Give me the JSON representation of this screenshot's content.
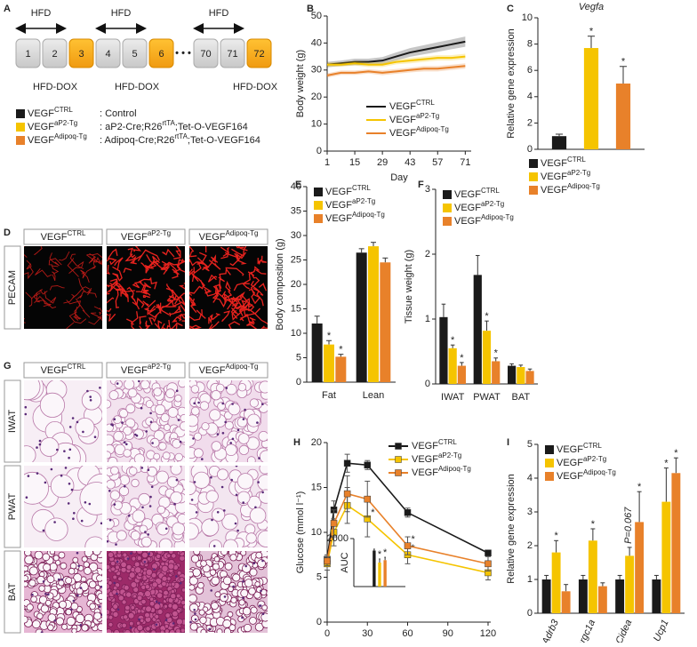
{
  "panel_a": {
    "label": "A",
    "hfd": [
      "HFD",
      "HFD",
      "HFD"
    ],
    "weeks": [
      "1",
      "2",
      "3",
      "4",
      "5",
      "6",
      "70",
      "71",
      "72"
    ],
    "ellipsis": "• • •",
    "dox": [
      "HFD-DOX",
      "HFD-DOX",
      "HFD-DOX"
    ],
    "legend": [
      {
        "name": "VEGF",
        "name_sup": "CTRL",
        "color": "#1a1a1a",
        "desc": ": Control"
      },
      {
        "name": "VEGF",
        "name_sup": "aP2-Tg",
        "color": "#f5c400",
        "desc": ": aP2-Cre;R26",
        "desc_sup": "rtTA",
        "desc_end": ";Tet-O-VEGF164"
      },
      {
        "name": "VEGF",
        "name_sup": "Adipoq-Tg",
        "color": "#e8812a",
        "desc": ": Adipoq-Cre;R26",
        "desc_sup": "rtTA",
        "desc_end": ";Tet-O-VEGF164"
      }
    ]
  },
  "panel_d": {
    "label": "D",
    "columns": [
      {
        "name": "VEGF",
        "name_sup": "CTRL"
      },
      {
        "name": "VEGF",
        "name_sup": "aP2-Tg"
      },
      {
        "name": "VEGF",
        "name_sup": "Adipoq-Tg"
      }
    ],
    "rows": [
      "PECAM"
    ]
  },
  "panel_g": {
    "label": "G",
    "columns": [
      {
        "name": "VEGF",
        "name_sup": "CTRL"
      },
      {
        "name": "VEGF",
        "name_sup": "aP2-Tg"
      },
      {
        "name": "VEGF",
        "name_sup": "Adipoq-Tg"
      }
    ],
    "rows": [
      "IWAT",
      "PWAT",
      "BAT"
    ]
  },
  "chart_data": [
    {
      "panel": "B",
      "type": "line",
      "ylabel": "Body weight (g)",
      "xlabel": "Day",
      "x": [
        1,
        8,
        15,
        22,
        29,
        36,
        43,
        50,
        57,
        64,
        71
      ],
      "xlim": [
        1,
        74
      ],
      "xticks": [
        1,
        15,
        29,
        43,
        57,
        71
      ],
      "ylim": [
        0,
        50
      ],
      "yticks": [
        0,
        10,
        20,
        30,
        40,
        50
      ],
      "error_style": "band",
      "legend": "lower right",
      "series": [
        {
          "name": "VEGF",
          "name_sup": "CTRL",
          "color": "#1a1a1a",
          "values": [
            32,
            32.5,
            33,
            33,
            33.5,
            35,
            36.5,
            37.5,
            38.5,
            39.5,
            40.5
          ],
          "errors": [
            1,
            1,
            1.2,
            1.2,
            1.3,
            1.5,
            1.6,
            1.7,
            1.8,
            1.8,
            1.9
          ]
        },
        {
          "name": "VEGF",
          "name_sup": "aP2-Tg",
          "color": "#f5c400",
          "values": [
            32,
            32,
            32.5,
            32,
            32,
            33,
            33.5,
            34,
            34.5,
            34.5,
            35
          ],
          "errors": [
            0.8,
            0.8,
            0.8,
            0.9,
            0.9,
            0.9,
            1,
            1,
            1,
            1,
            1
          ]
        },
        {
          "name": "VEGF",
          "name_sup": "Adipoq-Tg",
          "color": "#e8812a",
          "values": [
            28,
            29,
            29,
            29.5,
            29,
            29.5,
            30,
            30.5,
            30.5,
            31,
            31.5
          ],
          "errors": [
            0.8,
            0.8,
            0.8,
            0.8,
            0.9,
            0.9,
            0.9,
            1,
            1,
            1,
            1
          ]
        }
      ]
    },
    {
      "panel": "C",
      "type": "bar",
      "title": "Vegfa",
      "ylabel": "Relative gene expression",
      "categories": [
        null
      ],
      "ylim": [
        0,
        10
      ],
      "yticks": [
        0,
        2,
        4,
        6,
        8,
        10
      ],
      "legend": "below",
      "series": [
        {
          "name": "VEGF",
          "name_sup": "CTRL",
          "color": "#1a1a1a",
          "values": [
            1
          ],
          "errors": [
            0.15
          ],
          "significance": [
            null
          ]
        },
        {
          "name": "VEGF",
          "name_sup": "aP2-Tg",
          "color": "#f5c400",
          "values": [
            7.7
          ],
          "errors": [
            0.9
          ],
          "significance": [
            "*"
          ]
        },
        {
          "name": "VEGF",
          "name_sup": "Adipoq-Tg",
          "color": "#e8812a",
          "values": [
            5
          ],
          "errors": [
            1.3
          ],
          "significance": [
            "*"
          ]
        }
      ]
    },
    {
      "panel": "E",
      "type": "bar",
      "ylabel": "Body composition (g)",
      "categories": [
        "Fat",
        "Lean"
      ],
      "ylim": [
        0,
        40
      ],
      "yticks": [
        0,
        5,
        10,
        15,
        20,
        25,
        30,
        35,
        40
      ],
      "legend": "upper left",
      "series": [
        {
          "name": "VEGF",
          "name_sup": "CTRL",
          "color": "#1a1a1a",
          "values": [
            12,
            26.5
          ],
          "errors": [
            1.5,
            0.8
          ],
          "significance": [
            null,
            null
          ]
        },
        {
          "name": "VEGF",
          "name_sup": "aP2-Tg",
          "color": "#f5c400",
          "values": [
            7.7,
            27.8
          ],
          "errors": [
            0.8,
            0.8
          ],
          "significance": [
            "*",
            null
          ]
        },
        {
          "name": "VEGF",
          "name_sup": "Adipoq-Tg",
          "color": "#e8812a",
          "values": [
            5.2,
            24.5
          ],
          "errors": [
            0.5,
            0.9
          ],
          "significance": [
            "*",
            null
          ]
        }
      ]
    },
    {
      "panel": "F",
      "type": "bar",
      "ylabel": "Tissue weight (g)",
      "categories": [
        "IWAT",
        "PWAT",
        "BAT"
      ],
      "ylim": [
        0,
        3
      ],
      "yticks": [
        0,
        1,
        2,
        3
      ],
      "legend": "upper left",
      "series": [
        {
          "name": "VEGF",
          "name_sup": "CTRL",
          "color": "#1a1a1a",
          "values": [
            1.03,
            1.68,
            0.28
          ],
          "errors": [
            0.2,
            0.3,
            0.03
          ],
          "significance": [
            null,
            null,
            null
          ]
        },
        {
          "name": "VEGF",
          "name_sup": "aP2-Tg",
          "color": "#f5c400",
          "values": [
            0.55,
            0.82,
            0.26
          ],
          "errors": [
            0.05,
            0.15,
            0.03
          ],
          "significance": [
            "*",
            "*",
            null
          ]
        },
        {
          "name": "VEGF",
          "name_sup": "Adipoq-Tg",
          "color": "#e8812a",
          "values": [
            0.28,
            0.35,
            0.2
          ],
          "errors": [
            0.05,
            0.05,
            0.03
          ],
          "significance": [
            "*",
            "*",
            null
          ]
        }
      ]
    },
    {
      "panel": "H",
      "type": "line",
      "ylabel": "Glucose (mmol l⁻¹)",
      "xlabel": "Time (min)",
      "x": [
        0,
        5,
        15,
        30,
        60,
        120
      ],
      "xlim": [
        0,
        122
      ],
      "xticks": [
        0,
        30,
        60,
        90,
        120
      ],
      "ylim": [
        0,
        20
      ],
      "yticks": [
        0,
        5,
        10,
        15,
        20
      ],
      "error_style": "bars",
      "markers": "square",
      "legend": "upper right",
      "series": [
        {
          "name": "VEGF",
          "name_sup": "CTRL",
          "color": "#1a1a1a",
          "values": [
            7,
            12.5,
            17.7,
            17.5,
            12.2,
            7.7
          ],
          "errors": [
            0.5,
            1,
            1,
            0.5,
            0.5,
            0.3
          ],
          "significance": [
            null,
            null,
            null,
            null,
            null,
            null
          ]
        },
        {
          "name": "VEGF",
          "name_sup": "aP2-Tg",
          "color": "#f5c400",
          "values": [
            6.5,
            10,
            13,
            11.5,
            7.5,
            5.5
          ],
          "errors": [
            0.7,
            1.5,
            2,
            2,
            1,
            0.8
          ],
          "significance": [
            null,
            null,
            null,
            "*",
            "*",
            null
          ]
        },
        {
          "name": "VEGF",
          "name_sup": "Adipoq-Tg",
          "color": "#e8812a",
          "values": [
            6.8,
            11,
            14.3,
            13.7,
            8.5,
            6.5
          ],
          "errors": [
            0.5,
            1.5,
            2,
            2,
            1,
            0.8
          ],
          "significance": [
            null,
            null,
            null,
            null,
            "*",
            null
          ]
        }
      ]
    },
    {
      "type": "bar",
      "ylabel": "AUC",
      "categories": [
        null,
        null,
        null
      ],
      "values": [
        1500,
        1000,
        1100
      ],
      "errors": [
        60,
        150,
        120
      ],
      "colors": [
        "#1a1a1a",
        "#f5c400",
        "#e8812a"
      ],
      "significance": [
        null,
        "*",
        "*"
      ],
      "ylim": [
        0,
        2000
      ],
      "yticks": [
        2000
      ]
    },
    {
      "panel": "I",
      "type": "bar",
      "ylabel": "Relative gene expression",
      "categories": [
        "Adrb3",
        "Ppargc1a",
        "Cidea",
        "Ucp1"
      ],
      "xtick_style": "italic-rotated",
      "ylim": [
        0,
        5
      ],
      "yticks": [
        0,
        1,
        2,
        3,
        4,
        5
      ],
      "legend": "upper left",
      "series": [
        {
          "name": "VEGF",
          "name_sup": "CTRL",
          "color": "#1a1a1a",
          "values": [
            1,
            1,
            1,
            1
          ],
          "errors": [
            0.12,
            0.12,
            0.12,
            0.12
          ],
          "significance": [
            null,
            null,
            null,
            null
          ]
        },
        {
          "name": "VEGF",
          "name_sup": "aP2-Tg",
          "color": "#f5c400",
          "values": [
            1.8,
            2.15,
            1.7,
            3.3
          ],
          "errors": [
            0.35,
            0.35,
            0.25,
            1
          ],
          "significance": [
            "*",
            "*",
            "P=0.067",
            "*"
          ]
        },
        {
          "name": "VEGF",
          "name_sup": "Adipoq-Tg",
          "color": "#e8812a",
          "values": [
            0.65,
            0.8,
            2.7,
            4.15
          ],
          "errors": [
            0.2,
            0.1,
            0.9,
            0.45
          ],
          "significance": [
            null,
            null,
            "*",
            "*"
          ]
        }
      ]
    }
  ]
}
